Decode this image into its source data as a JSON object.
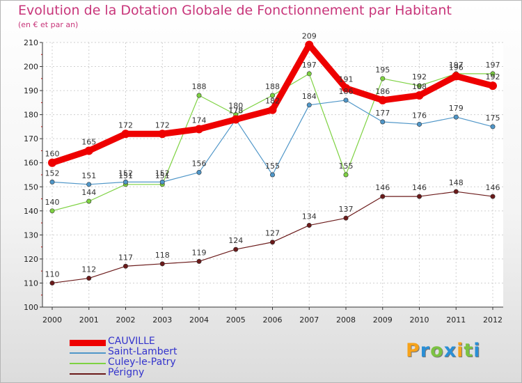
{
  "title": "Evolution de la Dotation Globale de Fonctionnement par Habitant",
  "subtitle": "(en € et par an)",
  "logo": {
    "letters": [
      "P",
      "r",
      "o",
      "x",
      "i",
      "t",
      "i"
    ],
    "colors": [
      "#f6a21a",
      "#2a8fd6",
      "#7cc242",
      "#2a8fd6",
      "#f6a21a",
      "#7cc242",
      "#2a8fd6"
    ]
  },
  "chart_data": {
    "type": "line",
    "title": "Evolution de la Dotation Globale de Fonctionnement par Habitant",
    "subtitle": "(en € et par an)",
    "xlabel": "",
    "ylabel": "",
    "x": [
      "2000",
      "2001",
      "2002",
      "2003",
      "2004",
      "2005",
      "2006",
      "2007",
      "2008",
      "2009",
      "2010",
      "2011",
      "2012"
    ],
    "ylim": [
      100,
      210
    ],
    "yticks": [
      "100",
      "110",
      "120",
      "130",
      "140",
      "150",
      "160",
      "170",
      "180",
      "190",
      "200",
      "210"
    ],
    "grid": true,
    "legend": "bottom-left",
    "series": [
      {
        "name": "CAUVILLE",
        "color": "#ee0000",
        "values": [
          160,
          165,
          172,
          172,
          174,
          178,
          182,
          209,
          191,
          186,
          188,
          196,
          192
        ],
        "labels": [
          "160",
          "165",
          "172",
          "172",
          "174",
          "178",
          "182",
          "209",
          "191",
          "186",
          "188",
          "196",
          "192"
        ]
      },
      {
        "name": "Saint-Lambert",
        "color": "#4f96c8",
        "values": [
          152,
          151,
          152,
          152,
          156,
          178,
          155,
          184,
          186,
          177,
          176,
          179,
          175
        ],
        "labels": [
          "152",
          "151",
          "152",
          "152",
          "156",
          "178",
          "155",
          "184",
          "186",
          "177",
          "176",
          "179",
          "175"
        ]
      },
      {
        "name": "Culey-le-Patry",
        "color": "#7ed242",
        "values": [
          140,
          144,
          151,
          151,
          188,
          180,
          188,
          197,
          155,
          195,
          192,
          197,
          197
        ],
        "labels": [
          "140",
          "144",
          "151",
          "151",
          "188",
          "180",
          "188",
          "197",
          "155",
          "195",
          "192",
          "197",
          "197"
        ]
      },
      {
        "name": "Périgny",
        "color": "#6b1a1a",
        "values": [
          110,
          112,
          117,
          118,
          119,
          124,
          127,
          134,
          137,
          146,
          146,
          148,
          146
        ],
        "labels": [
          "110",
          "112",
          "117",
          "118",
          "119",
          "124",
          "127",
          "134",
          "137",
          "146",
          "146",
          "148",
          "146"
        ]
      }
    ]
  }
}
